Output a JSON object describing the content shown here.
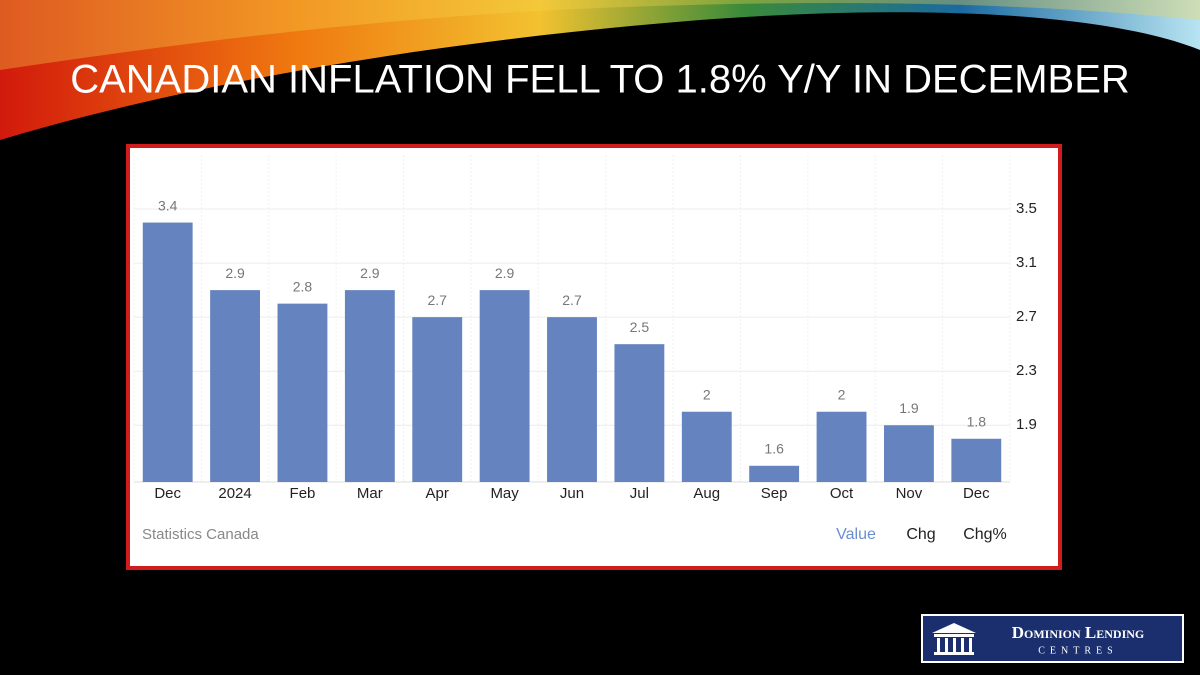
{
  "title": "CANADIAN INFLATION FELL TO 1.8% Y/Y IN DECEMBER",
  "chart_data": {
    "type": "bar",
    "categories": [
      "Dec",
      "2024",
      "Feb",
      "Mar",
      "Apr",
      "May",
      "Jun",
      "Jul",
      "Aug",
      "Sep",
      "Oct",
      "Nov",
      "Dec"
    ],
    "values": [
      3.4,
      2.9,
      2.8,
      2.9,
      2.7,
      2.9,
      2.7,
      2.5,
      2,
      1.6,
      2,
      1.9,
      1.8
    ],
    "color": "#6583bf",
    "ylim": [
      1.48,
      3.9
    ],
    "yticks": [
      1.9,
      2.3,
      2.7,
      3.1,
      3.5
    ],
    "grid": true,
    "source": "Statistics Canada",
    "tabs": [
      "Value",
      "Chg",
      "Chg%"
    ]
  },
  "logo": {
    "name": "Dominion Lending",
    "sub": "Centres"
  }
}
